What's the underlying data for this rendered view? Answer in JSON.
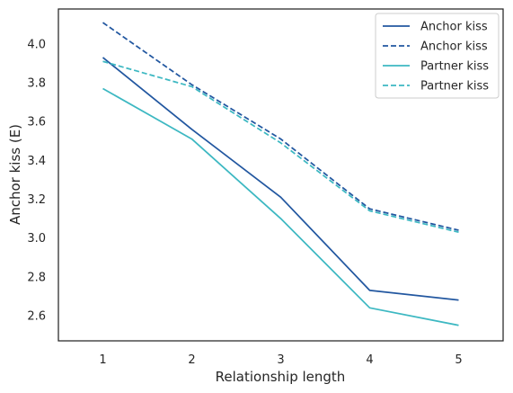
{
  "chart_data": {
    "type": "line",
    "x": [
      1,
      2,
      3,
      4,
      5
    ],
    "xlabel": "Relationship length",
    "ylabel": "Anchor kiss (E)",
    "xlim": [
      0.5,
      5.5
    ],
    "ylim": [
      2.47,
      4.18
    ],
    "xticks": [
      "1",
      "2",
      "3",
      "4",
      "5"
    ],
    "yticks": [
      "2.6",
      "2.8",
      "3.0",
      "3.2",
      "3.4",
      "3.6",
      "3.8",
      "4.0"
    ],
    "yticks_values": [
      2.6,
      2.8,
      3.0,
      3.2,
      3.4,
      3.6,
      3.8,
      4.0
    ],
    "grid": false,
    "legend_position": "top-right",
    "series": [
      {
        "name": "Anchor kiss",
        "style": "solid",
        "color": "#2257a0",
        "values": [
          3.93,
          3.56,
          3.21,
          2.73,
          2.68
        ]
      },
      {
        "name": "Anchor kiss",
        "style": "dashed",
        "color": "#2257a0",
        "values": [
          4.11,
          3.79,
          3.51,
          3.15,
          3.04
        ]
      },
      {
        "name": "Partner kiss",
        "style": "solid",
        "color": "#3db8c2",
        "values": [
          3.77,
          3.51,
          3.1,
          2.64,
          2.55
        ]
      },
      {
        "name": "Partner kiss",
        "style": "dashed",
        "color": "#3db8c2",
        "values": [
          3.91,
          3.78,
          3.49,
          3.14,
          3.03
        ]
      }
    ]
  }
}
